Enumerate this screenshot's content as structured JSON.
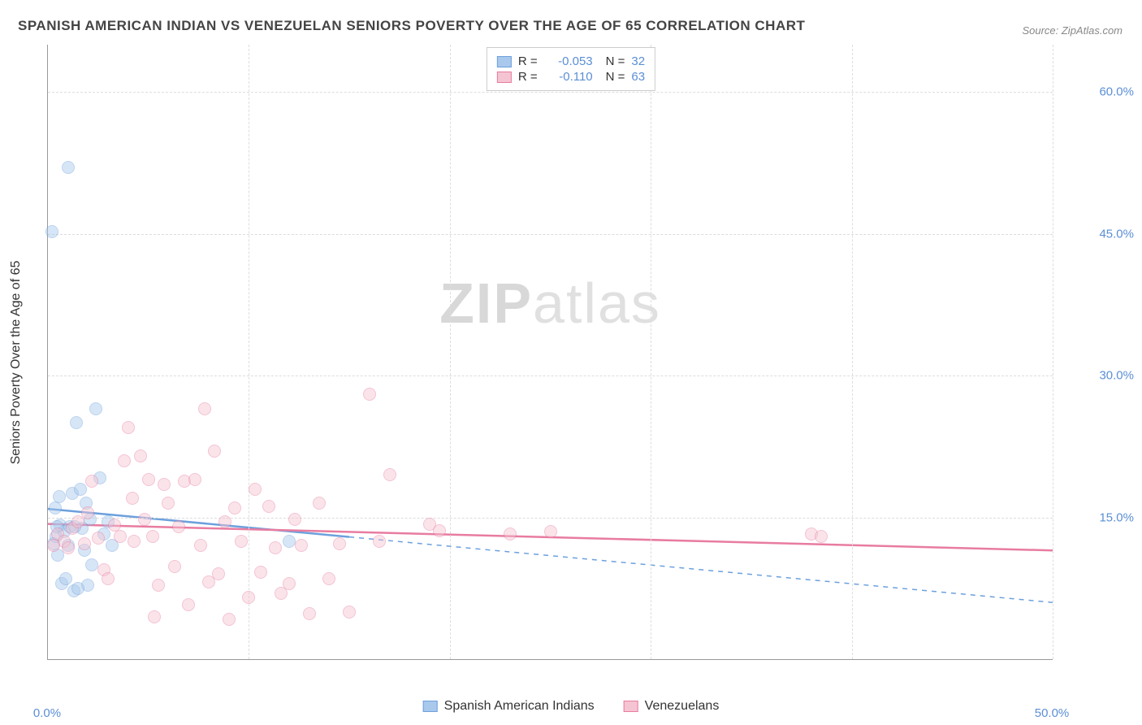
{
  "title": "SPANISH AMERICAN INDIAN VS VENEZUELAN SENIORS POVERTY OVER THE AGE OF 65 CORRELATION CHART",
  "source": "Source: ZipAtlas.com",
  "y_axis_label": "Seniors Poverty Over the Age of 65",
  "watermark_bold": "ZIP",
  "watermark_light": "atlas",
  "chart": {
    "type": "scatter",
    "x_min": 0,
    "x_max": 50,
    "y_min": 0,
    "y_max": 65,
    "x_ticks": [
      0,
      10,
      20,
      30,
      40,
      50
    ],
    "x_tick_labels": [
      "0.0%",
      "",
      "",
      "",
      "",
      "50.0%"
    ],
    "y_ticks": [
      15,
      30,
      45,
      60
    ],
    "y_tick_labels": [
      "15.0%",
      "30.0%",
      "45.0%",
      "60.0%"
    ],
    "grid_color": "#dddddd",
    "axis_color": "#999999",
    "background_color": "#ffffff",
    "marker_radius": 8,
    "marker_opacity": 0.45,
    "series": [
      {
        "name": "Spanish American Indians",
        "color_fill": "#a8c8ec",
        "color_stroke": "#6da0dd",
        "R": "-0.053",
        "N": "32",
        "trend": {
          "x1": 0,
          "y1": 15.9,
          "x2": 15,
          "y2": 13.1,
          "x2_ext": 50,
          "y2_ext": 6.0,
          "solid_frac": 0.3
        },
        "points": [
          [
            0.2,
            45.2
          ],
          [
            1.0,
            52.0
          ],
          [
            0.3,
            12.2
          ],
          [
            0.4,
            13.0
          ],
          [
            0.5,
            11.0
          ],
          [
            0.6,
            14.2
          ],
          [
            0.8,
            13.5
          ],
          [
            1.0,
            12.0
          ],
          [
            1.2,
            17.5
          ],
          [
            1.4,
            25.0
          ],
          [
            1.6,
            18.0
          ],
          [
            1.8,
            11.5
          ],
          [
            2.0,
            7.8
          ],
          [
            2.2,
            10.0
          ],
          [
            2.4,
            26.5
          ],
          [
            2.6,
            19.2
          ],
          [
            0.7,
            8.0
          ],
          [
            0.9,
            8.5
          ],
          [
            1.3,
            7.2
          ],
          [
            1.5,
            7.5
          ],
          [
            1.1,
            14.0
          ],
          [
            1.7,
            13.8
          ],
          [
            2.8,
            13.2
          ],
          [
            3.0,
            14.5
          ],
          [
            3.2,
            12.0
          ],
          [
            1.9,
            16.5
          ],
          [
            2.1,
            14.8
          ],
          [
            0.35,
            16.0
          ],
          [
            0.55,
            17.2
          ],
          [
            0.45,
            14.0
          ],
          [
            1.35,
            14.0
          ],
          [
            12.0,
            12.5
          ]
        ]
      },
      {
        "name": "Venezuelans",
        "color_fill": "#f5c4d2",
        "color_stroke": "#e87ca0",
        "R": "-0.110",
        "N": "63",
        "trend": {
          "x1": 0,
          "y1": 14.3,
          "x2": 50,
          "y2": 11.5,
          "solid_frac": 1.0
        },
        "points": [
          [
            0.3,
            12.0
          ],
          [
            0.5,
            13.2
          ],
          [
            0.8,
            12.5
          ],
          [
            1.0,
            11.8
          ],
          [
            1.2,
            13.8
          ],
          [
            1.5,
            14.5
          ],
          [
            1.8,
            12.2
          ],
          [
            2.0,
            15.5
          ],
          [
            2.2,
            18.8
          ],
          [
            2.5,
            12.8
          ],
          [
            2.8,
            9.5
          ],
          [
            3.0,
            8.5
          ],
          [
            3.3,
            14.2
          ],
          [
            3.6,
            13.0
          ],
          [
            3.8,
            21.0
          ],
          [
            4.0,
            24.5
          ],
          [
            4.3,
            12.5
          ],
          [
            4.6,
            21.5
          ],
          [
            4.8,
            14.8
          ],
          [
            5.0,
            19.0
          ],
          [
            5.3,
            4.5
          ],
          [
            5.5,
            7.8
          ],
          [
            5.8,
            18.5
          ],
          [
            6.0,
            16.5
          ],
          [
            6.3,
            9.8
          ],
          [
            6.5,
            14.0
          ],
          [
            6.8,
            18.8
          ],
          [
            7.0,
            5.8
          ],
          [
            7.3,
            19.0
          ],
          [
            7.6,
            12.0
          ],
          [
            7.8,
            26.5
          ],
          [
            8.0,
            8.2
          ],
          [
            8.3,
            22.0
          ],
          [
            8.5,
            9.0
          ],
          [
            8.8,
            14.5
          ],
          [
            9.0,
            4.2
          ],
          [
            9.3,
            16.0
          ],
          [
            9.6,
            12.5
          ],
          [
            10.0,
            6.5
          ],
          [
            10.3,
            18.0
          ],
          [
            10.6,
            9.2
          ],
          [
            11.0,
            16.2
          ],
          [
            11.3,
            11.8
          ],
          [
            11.6,
            7.0
          ],
          [
            12.0,
            8.0
          ],
          [
            12.3,
            14.8
          ],
          [
            12.6,
            12.0
          ],
          [
            13.0,
            4.8
          ],
          [
            13.5,
            16.5
          ],
          [
            14.0,
            8.5
          ],
          [
            14.5,
            12.2
          ],
          [
            15.0,
            5.0
          ],
          [
            16.0,
            28.0
          ],
          [
            16.5,
            12.5
          ],
          [
            17.0,
            19.5
          ],
          [
            19.0,
            14.3
          ],
          [
            19.5,
            13.6
          ],
          [
            23.0,
            13.2
          ],
          [
            25.0,
            13.5
          ],
          [
            38.0,
            13.2
          ],
          [
            38.5,
            13.0
          ],
          [
            4.2,
            17.0
          ],
          [
            5.2,
            13.0
          ]
        ]
      }
    ]
  },
  "legend_bottom": [
    {
      "label": "Spanish American Indians",
      "fill": "#a8c8ec",
      "stroke": "#6da0dd"
    },
    {
      "label": "Venezuelans",
      "fill": "#f5c4d2",
      "stroke": "#e87ca0"
    }
  ]
}
